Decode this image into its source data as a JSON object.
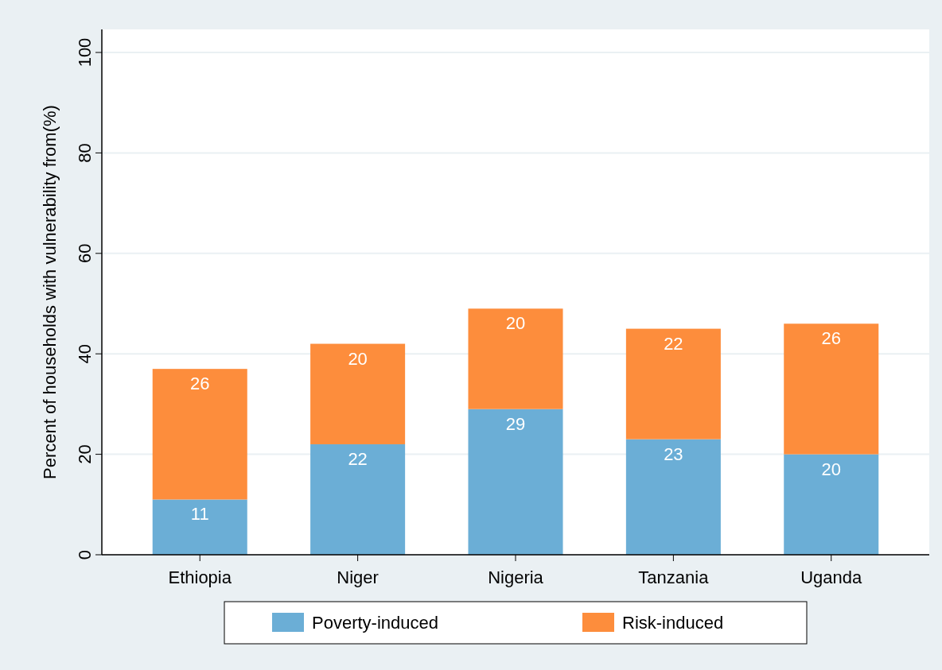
{
  "chart_data": {
    "type": "bar",
    "stacked": true,
    "ylabel": "Percent of households with vulnerability from(%)",
    "categories": [
      "Ethiopia",
      "Niger",
      "Nigeria",
      "Tanzania",
      "Uganda"
    ],
    "series": [
      {
        "name": "Poverty-induced",
        "color": "#6baed6",
        "values": [
          11,
          22,
          29,
          23,
          20
        ]
      },
      {
        "name": "Risk-induced",
        "color": "#fd8d3c",
        "values": [
          26,
          20,
          20,
          22,
          26
        ]
      }
    ],
    "ylim": [
      0,
      100
    ],
    "yticks": [
      0,
      20,
      40,
      60,
      80,
      100
    ],
    "grid": "y",
    "legend": "bottom",
    "data_labels": true
  }
}
